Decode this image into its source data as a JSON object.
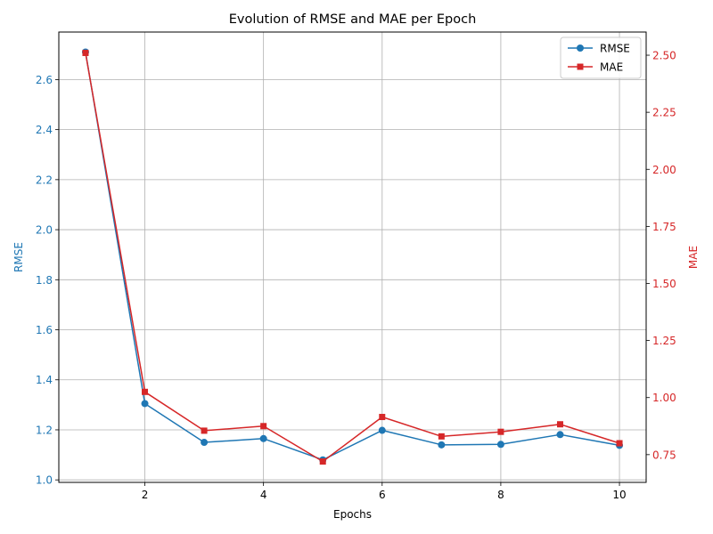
{
  "chart_data": {
    "type": "line",
    "title": "Evolution of RMSE and MAE per Epoch",
    "xlabel": "Epochs",
    "x": [
      1,
      2,
      3,
      4,
      5,
      6,
      7,
      8,
      9,
      10
    ],
    "xlim": [
      0.55,
      10.45
    ],
    "xticks": [
      2,
      4,
      6,
      8,
      10
    ],
    "grid": true,
    "legend_position": "top-right",
    "series": [
      {
        "name": "RMSE",
        "axis": "left",
        "color": "#1f77b4",
        "marker": "circle",
        "values": [
          2.71,
          1.305,
          1.15,
          1.165,
          1.08,
          1.198,
          1.14,
          1.142,
          1.181,
          1.138
        ]
      },
      {
        "name": "MAE",
        "axis": "right",
        "color": "#d62728",
        "marker": "square",
        "values": [
          2.51,
          1.025,
          0.855,
          0.875,
          0.72,
          0.915,
          0.83,
          0.85,
          0.883,
          0.8
        ]
      }
    ],
    "y_left": {
      "label": "RMSE",
      "color": "#1f77b4",
      "ylim": [
        0.99,
        2.79
      ],
      "ticks": [
        1.0,
        1.2,
        1.4,
        1.6,
        1.8,
        2.0,
        2.2,
        2.4,
        2.6
      ],
      "tick_labels": [
        "1.0",
        "1.2",
        "1.4",
        "1.6",
        "1.8",
        "2.0",
        "2.2",
        "2.4",
        "2.6"
      ]
    },
    "y_right": {
      "label": "MAE",
      "color": "#d62728",
      "ylim": [
        0.6285,
        2.6015
      ],
      "ticks": [
        0.75,
        1.0,
        1.25,
        1.5,
        1.75,
        2.0,
        2.25,
        2.5
      ],
      "tick_labels": [
        "0.75",
        "1.00",
        "1.25",
        "1.50",
        "1.75",
        "2.00",
        "2.25",
        "2.50"
      ]
    }
  }
}
